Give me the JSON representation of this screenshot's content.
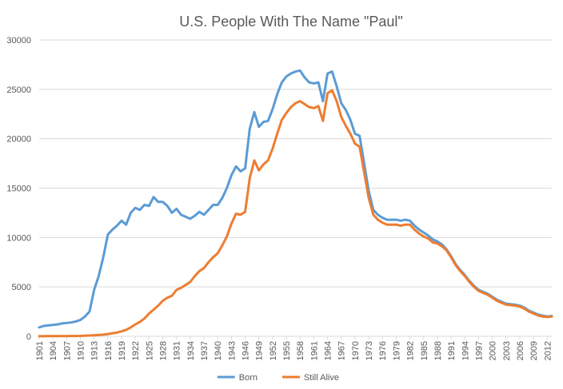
{
  "chart_data": {
    "type": "line",
    "title": "U.S. People With The Name \"Paul\"",
    "xlabel": "",
    "ylabel": "",
    "xlim": [
      1901,
      2013
    ],
    "ylim": [
      0,
      30000
    ],
    "yticks": [
      0,
      5000,
      10000,
      15000,
      20000,
      25000,
      30000
    ],
    "ytick_labels": [
      "0",
      "5000",
      "10000",
      "15000",
      "20000",
      "25000",
      "30000"
    ],
    "xtick_labels": [
      "1901",
      "1904",
      "1907",
      "1910",
      "1913",
      "1916",
      "1919",
      "1922",
      "1925",
      "1928",
      "1931",
      "1934",
      "1937",
      "1940",
      "1943",
      "1946",
      "1949",
      "1952",
      "1955",
      "1958",
      "1961",
      "1964",
      "1967",
      "1970",
      "1973",
      "1976",
      "1979",
      "1982",
      "1985",
      "1988",
      "1991",
      "1994",
      "1997",
      "2000",
      "2003",
      "2006",
      "2009",
      "2012"
    ],
    "grid": true,
    "legend_position": "bottom",
    "x": [
      1901,
      1902,
      1903,
      1904,
      1905,
      1906,
      1907,
      1908,
      1909,
      1910,
      1911,
      1912,
      1913,
      1914,
      1915,
      1916,
      1917,
      1918,
      1919,
      1920,
      1921,
      1922,
      1923,
      1924,
      1925,
      1926,
      1927,
      1928,
      1929,
      1930,
      1931,
      1932,
      1933,
      1934,
      1935,
      1936,
      1937,
      1938,
      1939,
      1940,
      1941,
      1942,
      1943,
      1944,
      1945,
      1946,
      1947,
      1948,
      1949,
      1950,
      1951,
      1952,
      1953,
      1954,
      1955,
      1956,
      1957,
      1958,
      1959,
      1960,
      1961,
      1962,
      1963,
      1964,
      1965,
      1966,
      1967,
      1968,
      1969,
      1970,
      1971,
      1972,
      1973,
      1974,
      1975,
      1976,
      1977,
      1978,
      1979,
      1980,
      1981,
      1982,
      1983,
      1984,
      1985,
      1986,
      1987,
      1988,
      1989,
      1990,
      1991,
      1992,
      1993,
      1994,
      1995,
      1996,
      1997,
      1998,
      1999,
      2000,
      2001,
      2002,
      2003,
      2004,
      2005,
      2006,
      2007,
      2008,
      2009,
      2010,
      2011,
      2012,
      2013
    ],
    "series": [
      {
        "name": "Born",
        "color": "#5b9bd5",
        "values": [
          900,
          1050,
          1100,
          1150,
          1200,
          1300,
          1350,
          1400,
          1500,
          1650,
          2000,
          2500,
          4700,
          6100,
          8000,
          10300,
          10800,
          11200,
          11700,
          11300,
          12500,
          13000,
          12800,
          13300,
          13200,
          14100,
          13600,
          13600,
          13200,
          12500,
          12900,
          12300,
          12100,
          11900,
          12200,
          12600,
          12300,
          12800,
          13300,
          13300,
          14000,
          15000,
          16300,
          17200,
          16700,
          17000,
          21000,
          22700,
          21200,
          21700,
          21800,
          23000,
          24500,
          25700,
          26300,
          26600,
          26800,
          26900,
          26200,
          25700,
          25600,
          25700,
          23800,
          26600,
          26800,
          25300,
          23600,
          22900,
          21900,
          20500,
          20300,
          17500,
          14700,
          12800,
          12300,
          12000,
          11800,
          11800,
          11800,
          11700,
          11800,
          11700,
          11200,
          10800,
          10500,
          10200,
          9800,
          9600,
          9300,
          8800,
          8100,
          7300,
          6700,
          6200,
          5600,
          5100,
          4700,
          4500,
          4300,
          4000,
          3700,
          3500,
          3300,
          3250,
          3200,
          3100,
          2900,
          2600,
          2400,
          2200,
          2100,
          2000,
          2050
        ]
      },
      {
        "name": "Still Alive",
        "color": "#ed7d31",
        "values": [
          10,
          10,
          15,
          15,
          20,
          20,
          25,
          30,
          35,
          40,
          60,
          80,
          100,
          130,
          170,
          220,
          300,
          380,
          500,
          650,
          900,
          1200,
          1450,
          1800,
          2300,
          2700,
          3100,
          3600,
          3900,
          4100,
          4700,
          4900,
          5200,
          5500,
          6100,
          6600,
          6900,
          7500,
          8000,
          8400,
          9200,
          10100,
          11400,
          12400,
          12300,
          12600,
          16000,
          17800,
          16800,
          17400,
          17800,
          19000,
          20500,
          21900,
          22600,
          23200,
          23600,
          23800,
          23500,
          23200,
          23100,
          23300,
          21800,
          24600,
          24900,
          23800,
          22200,
          21300,
          20500,
          19500,
          19200,
          16600,
          14000,
          12300,
          11800,
          11500,
          11300,
          11300,
          11300,
          11200,
          11300,
          11300,
          10800,
          10400,
          10100,
          9900,
          9500,
          9400,
          9100,
          8700,
          8000,
          7200,
          6600,
          6100,
          5500,
          5000,
          4600,
          4400,
          4200,
          3900,
          3600,
          3400,
          3200,
          3150,
          3100,
          3000,
          2800,
          2500,
          2300,
          2100,
          2000,
          1950,
          2000
        ]
      }
    ]
  }
}
